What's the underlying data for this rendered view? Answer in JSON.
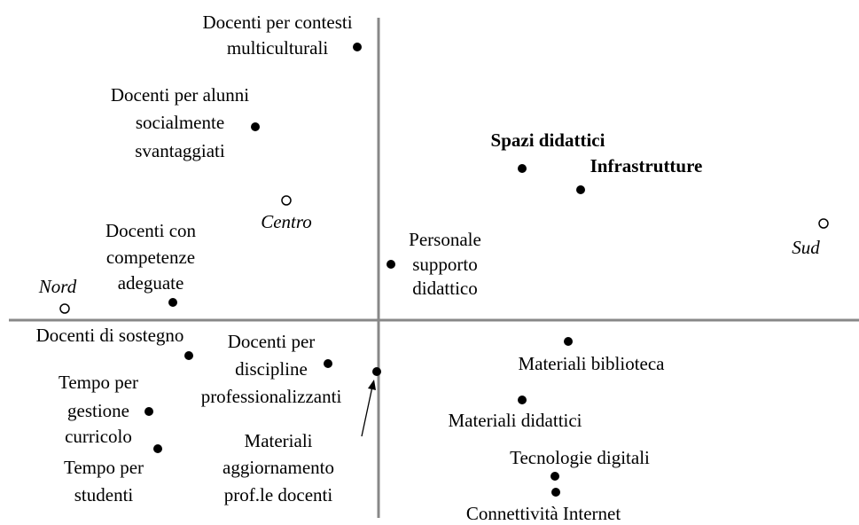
{
  "points": [
    {
      "lines": [
        "Docenti per contesti",
        "multiculturali"
      ]
    },
    {
      "lines": [
        "Docenti per alunni",
        "socialmente",
        "svantaggiati"
      ]
    },
    {
      "lines": [
        "Spazi didattici"
      ]
    },
    {
      "lines": [
        "Infrastrutture"
      ]
    },
    {
      "lines": [
        "Docenti con",
        "competenze",
        "adeguate"
      ]
    },
    {
      "lines": [
        "Personale",
        "supporto",
        "didattico"
      ]
    },
    {
      "lines": [
        "Docenti di sostegno"
      ]
    },
    {
      "lines": [
        "Docenti per",
        "discipline",
        "professionalizzanti"
      ]
    },
    {
      "lines": [
        "Materiali",
        "aggiornamento",
        "prof.le docenti"
      ]
    },
    {
      "lines": [
        "Tempo per",
        "gestione",
        "curricolo"
      ]
    },
    {
      "lines": [
        "Tempo per",
        "studenti"
      ]
    },
    {
      "lines": [
        "Materiali biblioteca"
      ]
    },
    {
      "lines": [
        "Materiali didattici"
      ]
    },
    {
      "lines": [
        "Tecnologie digitali"
      ]
    },
    {
      "lines": [
        "Connettività Internet"
      ]
    }
  ],
  "areas": [
    {
      "label": "Centro"
    },
    {
      "label": "Sud"
    },
    {
      "label": "Nord"
    }
  ]
}
